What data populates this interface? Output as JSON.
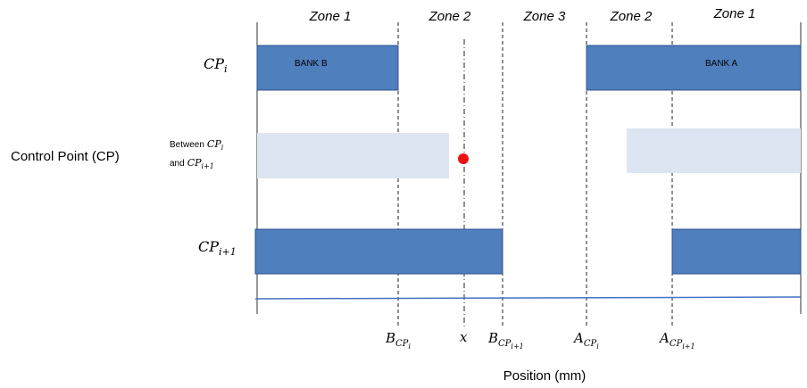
{
  "zones": [
    "Zone 1",
    "Zone 2",
    "Zone 3",
    "Zone 2",
    "Zone 1"
  ],
  "side_label": "Control Point (CP)",
  "rows": {
    "cp_i": {
      "base": "CP",
      "sub": "i"
    },
    "between": {
      "text_prefix": "Between",
      "cp_i_base": "CP",
      "cp_i_sub": "i",
      "and_text": "and",
      "cp_next_base": "CP",
      "cp_next_sub": "i+1"
    },
    "cp_next": {
      "base": "CP",
      "sub": "i+1"
    }
  },
  "banks": {
    "left": "BANK B",
    "right": "BANK A"
  },
  "axis_ticks": [
    {
      "base": "B",
      "sub_base": "CP",
      "sub_sub": "i"
    },
    {
      "base": "x",
      "sub_base": "",
      "sub_sub": ""
    },
    {
      "base": "B",
      "sub_base": "CP",
      "sub_sub": "i+1"
    },
    {
      "base": "A",
      "sub_base": "CP",
      "sub_sub": "i"
    },
    {
      "base": "A",
      "sub_base": "CP",
      "sub_sub": "i+1"
    }
  ],
  "axis_title": "Position (mm)",
  "colors": {
    "bank_fill": "#4f7fbd",
    "bank_stroke": "#2f4f8f",
    "light_fill": "#dce6f2",
    "point": "#ee1111",
    "axis_line": "#4472c4"
  }
}
